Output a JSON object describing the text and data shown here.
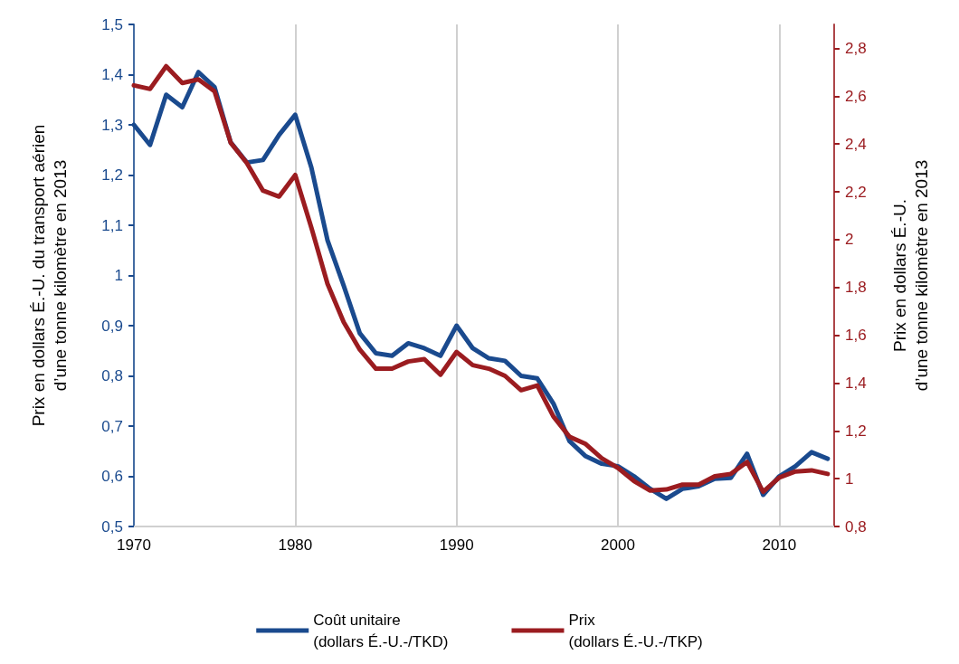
{
  "chart_data": {
    "type": "line",
    "ylabel": "Prix en dollars É.-U. du transport aérien\nd’une tonne kilomètre en 2013",
    "y2label": "Prix en dollars É.-U.\nd’une tonne kilomètre en 2013",
    "x": [
      1970,
      1971,
      1972,
      1973,
      1974,
      1975,
      1976,
      1977,
      1978,
      1979,
      1980,
      1981,
      1982,
      1983,
      1984,
      1985,
      1986,
      1987,
      1988,
      1989,
      1990,
      1991,
      1992,
      1993,
      1994,
      1995,
      1996,
      1997,
      1998,
      1999,
      2000,
      2001,
      2002,
      2003,
      2004,
      2005,
      2006,
      2007,
      2008,
      2009,
      2010,
      2011,
      2012,
      2013
    ],
    "series": [
      {
        "name": "Coût unitaire\n(dollars É.-U.-/TKD)",
        "color": "#1a4a8e",
        "values": [
          1.3,
          1.26,
          1.36,
          1.335,
          1.405,
          1.375,
          1.265,
          1.225,
          1.23,
          1.28,
          1.32,
          1.215,
          1.07,
          0.98,
          0.885,
          0.845,
          0.84,
          0.865,
          0.855,
          0.84,
          0.9,
          0.855,
          0.835,
          0.83,
          0.8,
          0.795,
          0.745,
          0.67,
          0.64,
          0.625,
          0.62,
          0.6,
          0.575,
          0.555,
          0.575,
          0.58,
          0.595,
          0.597,
          0.645,
          0.563,
          0.6,
          0.62,
          0.648,
          0.635
        ]
      },
      {
        "name": "Prix\n(dollars É.-U.-/TKP)",
        "color": "#9b1c20",
        "axis": "y2",
        "values": [
          2.645,
          2.63,
          2.725,
          2.655,
          2.67,
          2.62,
          2.405,
          2.32,
          2.205,
          2.18,
          2.27,
          2.05,
          1.815,
          1.655,
          1.54,
          1.46,
          1.46,
          1.49,
          1.5,
          1.435,
          1.53,
          1.475,
          1.46,
          1.43,
          1.37,
          1.39,
          1.26,
          1.175,
          1.145,
          1.085,
          1.045,
          0.99,
          0.95,
          0.955,
          0.975,
          0.975,
          1.01,
          1.02,
          1.07,
          0.945,
          1.005,
          1.03,
          1.035,
          1.02
        ]
      }
    ],
    "xlim": [
      1970,
      2013.4
    ],
    "xticks": [
      1970,
      1980,
      1990,
      2000,
      2010
    ],
    "ylim": [
      0.5,
      1.5
    ],
    "yticks": [
      {
        "value": 0.5,
        "label": "0,5"
      },
      {
        "value": 0.6,
        "label": "0,6"
      },
      {
        "value": 0.7,
        "label": "0,7"
      },
      {
        "value": 0.8,
        "label": "0,8"
      },
      {
        "value": 0.9,
        "label": "0,9"
      },
      1,
      {
        "value": 1.1,
        "label": "1,1"
      },
      {
        "value": 1.2,
        "label": "1,2"
      },
      {
        "value": 1.3,
        "label": "1,3"
      },
      {
        "value": 1.4,
        "label": "1,4"
      },
      {
        "value": 1.5,
        "label": "1,5"
      }
    ],
    "y2lim": [
      0.8,
      2.9
    ],
    "y2ticks": [
      {
        "value": 0.8,
        "label": "0,8"
      },
      1,
      {
        "value": 1.2,
        "label": "1,2"
      },
      {
        "value": 1.4,
        "label": "1,4"
      },
      {
        "value": 1.6,
        "label": "1,6"
      },
      {
        "value": 1.8,
        "label": "1,8"
      },
      2,
      {
        "value": 2.2,
        "label": "2,2"
      },
      {
        "value": 2.4,
        "label": "2,4"
      },
      {
        "value": 2.6,
        "label": "2,6"
      },
      {
        "value": 2.8,
        "label": "2,8"
      }
    ],
    "grid": "x",
    "legend": "bottom",
    "marker": "none",
    "line_style": "solid"
  }
}
